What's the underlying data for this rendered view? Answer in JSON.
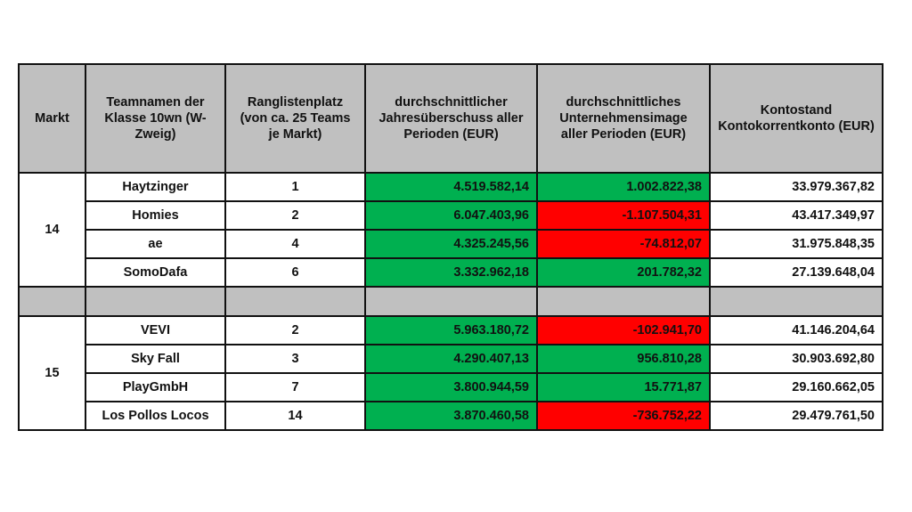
{
  "headers": [
    "Markt",
    "Teamnamen der Klasse 10wn (W-Zweig)",
    "Ranglistenplatz (von ca. 25 Teams je Markt)",
    "durchschnittlicher Jahresüberschuss aller Perioden (EUR)",
    "durchschnittliches Unternehmensimage aller Perioden (EUR)",
    "Kontostand Kontokorrentkonto (EUR)"
  ],
  "colors": {
    "header": "#c0c0c0",
    "positive": "#00b050",
    "negative": "#ff0000"
  },
  "markets": [
    {
      "market": "14",
      "rows": [
        {
          "team": "Haytzinger",
          "rank": "1",
          "surplus": "4.519.582,14",
          "image": "1.002.822,38",
          "account": "33.979.367,82"
        },
        {
          "team": "Homies",
          "rank": "2",
          "surplus": "6.047.403,96",
          "image": "-1.107.504,31",
          "account": "43.417.349,97"
        },
        {
          "team": "ae",
          "rank": "4",
          "surplus": "4.325.245,56",
          "image": "-74.812,07",
          "account": "31.975.848,35"
        },
        {
          "team": "SomoDafa",
          "rank": "6",
          "surplus": "3.332.962,18",
          "image": "201.782,32",
          "account": "27.139.648,04"
        }
      ]
    },
    {
      "market": "15",
      "rows": [
        {
          "team": "VEVI",
          "rank": "2",
          "surplus": "5.963.180,72",
          "image": "-102.941,70",
          "account": "41.146.204,64"
        },
        {
          "team": "Sky Fall",
          "rank": "3",
          "surplus": "4.290.407,13",
          "image": "956.810,28",
          "account": "30.903.692,80"
        },
        {
          "team": "PlayGmbH",
          "rank": "7",
          "surplus": "3.800.944,59",
          "image": "15.771,87",
          "account": "29.160.662,05"
        },
        {
          "team": "Los Pollos Locos",
          "rank": "14",
          "surplus": "3.870.460,58",
          "image": "-736.752,22",
          "account": "29.479.761,50"
        }
      ]
    }
  ]
}
